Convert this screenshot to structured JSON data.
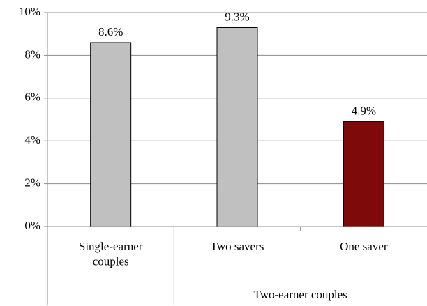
{
  "chart_data": {
    "type": "bar",
    "categories": [
      "Single-earner couples",
      "Two savers",
      "One saver"
    ],
    "category_groups": [
      null,
      "Two-earner couples",
      "Two-earner couples"
    ],
    "values": [
      8.6,
      9.3,
      4.9
    ],
    "value_labels": [
      "8.6%",
      "9.3%",
      "4.9%"
    ],
    "colors": [
      "#c0c0c0",
      "#c0c0c0",
      "#7f0a0a"
    ],
    "ylim": [
      0,
      10
    ],
    "yticks": [
      {
        "value": 0,
        "label": "0%"
      },
      {
        "value": 2,
        "label": "2%"
      },
      {
        "value": 4,
        "label": "4%"
      },
      {
        "value": 6,
        "label": "6%"
      },
      {
        "value": 8,
        "label": "8%"
      },
      {
        "value": 10,
        "label": "10%"
      }
    ],
    "grid": true
  }
}
